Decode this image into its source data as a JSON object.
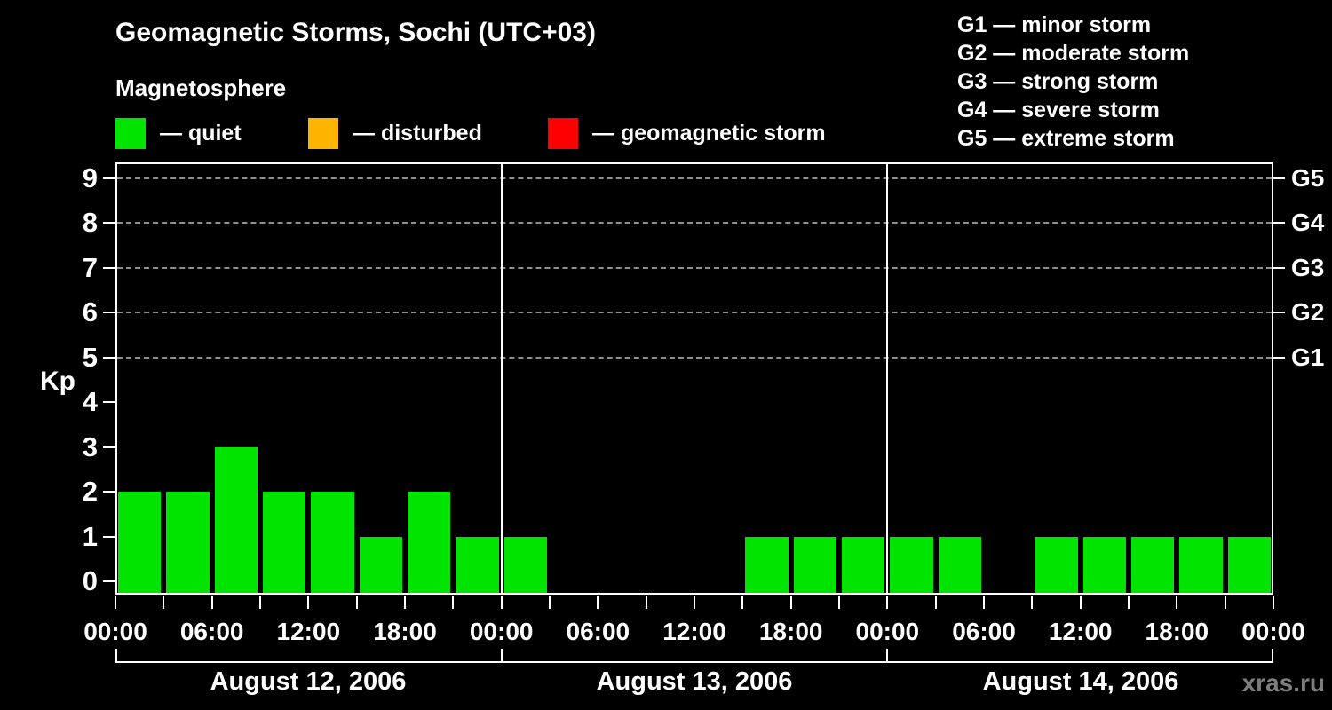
{
  "header": {
    "title": "Geomagnetic Storms, Sochi (UTC+03)",
    "subtitle": "Magnetosphere"
  },
  "legend": {
    "items": [
      {
        "name": "quiet",
        "label": "— quiet",
        "color": "#00E400"
      },
      {
        "name": "disturbed",
        "label": "— disturbed",
        "color": "#FFB400"
      },
      {
        "name": "storm",
        "label": "— geomagnetic storm",
        "color": "#FF0000"
      }
    ]
  },
  "g_legend": {
    "items": [
      "G1 — minor storm",
      "G2 — moderate storm",
      "G3 — strong storm",
      "G4 — severe storm",
      "G5 — extreme storm"
    ]
  },
  "watermark": "xras.ru",
  "chart_data": {
    "type": "bar",
    "title": "Geomagnetic Storms, Sochi (UTC+03)",
    "subtitle": "Magnetosphere",
    "ylabel": "Kp",
    "ylim": [
      0,
      9
    ],
    "y_ticks": [
      0,
      1,
      2,
      3,
      4,
      5,
      6,
      7,
      8,
      9
    ],
    "gridlines_at": [
      5,
      6,
      7,
      8,
      9
    ],
    "grid": "dashed, only at storm levels 5-9",
    "right_axis_labels": [
      {
        "label": "G5",
        "kp": 9
      },
      {
        "label": "G4",
        "kp": 8
      },
      {
        "label": "G3",
        "kp": 7
      },
      {
        "label": "G2",
        "kp": 6
      },
      {
        "label": "G1",
        "kp": 5
      }
    ],
    "interval_hours": 3,
    "x_tick_label_step_hours": 6,
    "x_tick_labels": [
      "00:00",
      "06:00",
      "12:00",
      "18:00",
      "00:00",
      "06:00",
      "12:00",
      "18:00",
      "00:00",
      "06:00",
      "12:00",
      "18:00",
      "00:00"
    ],
    "days": [
      {
        "date": "August 12, 2006",
        "kp_values": [
          2,
          2,
          3,
          2,
          2,
          1,
          2,
          1
        ]
      },
      {
        "date": "August 13, 2006",
        "kp_values": [
          1,
          0,
          0,
          0,
          0,
          1,
          1,
          1
        ]
      },
      {
        "date": "August 14, 2006",
        "kp_values": [
          1,
          1,
          0,
          1,
          1,
          1,
          1,
          1
        ]
      }
    ],
    "bar_color_rules": {
      "quiet_kp_max": 3,
      "disturbed_kp": 4,
      "storm_kp_min": 5
    },
    "colors": {
      "quiet": "#00E400",
      "disturbed": "#FFB400",
      "storm": "#FF0000"
    }
  }
}
